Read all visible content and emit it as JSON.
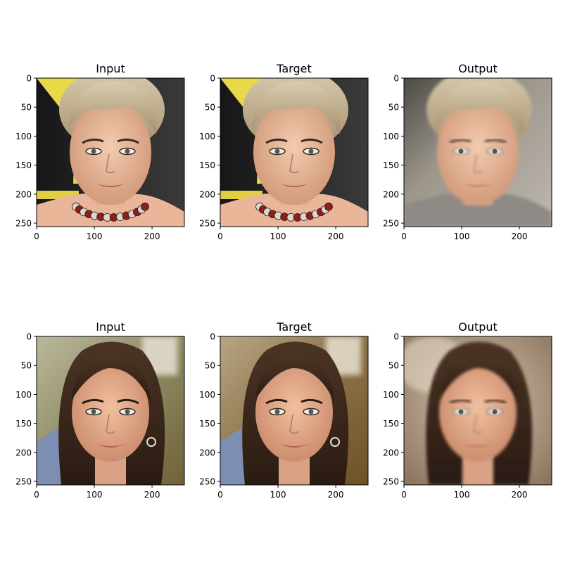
{
  "figure": {
    "tick_values": [
      0,
      50,
      100,
      150,
      200,
      250
    ],
    "x_tick_values": [
      0,
      100,
      200
    ],
    "data_range": [
      0,
      256
    ],
    "rows": [
      {
        "panels": [
          {
            "title": "Input",
            "subject": "blonde-woman-photo",
            "background": "yellow-black-backdrop"
          },
          {
            "title": "Target",
            "subject": "blonde-woman-photo",
            "background": "yellow-black-backdrop"
          },
          {
            "title": "Output",
            "subject": "blonde-woman-generated",
            "background": "blurred-grey-backdrop"
          }
        ]
      },
      {
        "panels": [
          {
            "title": "Input",
            "subject": "brunette-woman-photo",
            "background": "warm-blurred-backdrop"
          },
          {
            "title": "Target",
            "subject": "brunette-woman-photo",
            "background": "warm-blurred-backdrop"
          },
          {
            "title": "Output",
            "subject": "brunette-woman-generated",
            "background": "beige-blurred-backdrop"
          }
        ]
      }
    ]
  }
}
